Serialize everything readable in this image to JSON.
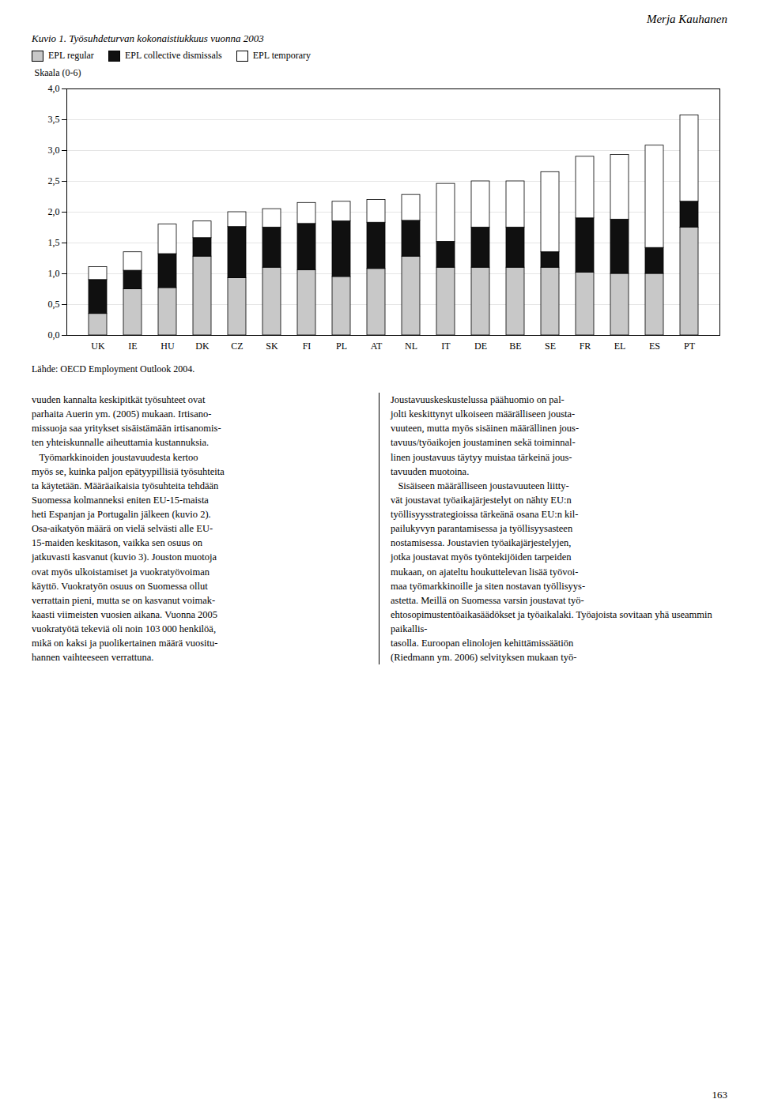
{
  "chart_data": {
    "type": "bar",
    "title": "Kuvio 1. Työsuhdeturvan kokonaistiukkuus vuonna 2003",
    "ylabel": "Skaala (0-6)",
    "annotations": [
      "Merja Kauhanen",
      "Lähde: OECD Employment Outlook 2004.",
      "vuuden kannalta keskipitkät työsuhteet ovat\nparhaita Auerin ym. (2005) mukaan. Irtisano-\nmissuoja saa yritykset sisäistämään irtisanomis-\nten yhteiskunnalle aiheuttamia kustannuksia.\n   Työmarkkinoiden joustavuudesta kertoo\nmyös se, kuinka paljon epätyypillisiä työsuhteita\nta käytetään. Määräaikaisia työsuhteita tehdään\nSuomessa kolmanneksi eniten EU-15-maista\nheti Espanjan ja Portugalin jälkeen (kuvio 2).\nOsa-aikatyön määrä on vielä selvästi alle EU-\n15-maiden keskitason, vaikka sen osuus on\njatkuvasti kasvanut (kuvio 3). Jouston muotoja\novat myös ulkoistamiset ja vuokratyövoiman\nkäyttö. Vuokratyön osuus on Suomessa ollut\nverrattain pieni, mutta se on kasvanut voimak-\nkaasti viimeisten vuosien aikana. Vuonna 2005\nvuokratyötä tekeviä oli noin 103 000 henkilöä,\nmikä on kaksi ja puolikertainen määrä vuositu-\nhannen vaihteeseen verrattuna.",
      "Joustavuuskeskustelussa päähuomio on pal-\njolti keskittynyt ulkoiseen määrälliseen jousta-\nvuuteen, mutta myös sisäinen määrällinen jous-\ntavuus/työaikojen joustaminen sekä toiminnal-\nlinen joustavuus täytyy muistaa tärkeinä jous-\ntavuuden muotoina.\n   Sisäiseen määrälliseen joustavuuteen liitty-\nvät joustavat työaikajärjestelyt on nähty EU:n\ntyöllisyysstrategioissa tärkeänä osana EU:n kil-\npailukyvyn parantamisessa ja työllisyysasteen\nnostamisessa. Joustavien työaikajärjestelyjen,\njotka joustavat myös työntekijöiden tarpeiden\nmukaan, on ajateltu houkuttelevan lisää työvoi-\nmaa työmarkkinoille ja siten nostavan työllisyys-\nastetta. Meillä on Suomessa varsin joustavat työ-\nehtosopimustentöaikasäädökset ja työaikalaki. Työajoista sovitaan yhä useammin paikallis-\ntasolla. Euroopan elinolojen kehittämissäätiön\n(Riedmann ym. 2006) selvityksen mukaan työ-",
      "163"
    ],
    "categories": [
      "UK",
      "IE",
      "HU",
      "DK",
      "CZ",
      "SK",
      "FI",
      "PL",
      "AT",
      "NL",
      "IT",
      "DE",
      "BE",
      "SE",
      "FR",
      "EL",
      "ES",
      "PT"
    ],
    "series": [
      {
        "name": "EPL regular",
        "color": "#c8c8c8",
        "values": [
          0.35,
          0.75,
          0.77,
          1.28,
          0.93,
          1.1,
          1.06,
          0.95,
          1.08,
          1.28,
          1.1,
          1.1,
          1.1,
          1.1,
          1.02,
          1.0,
          1.0,
          1.75
        ]
      },
      {
        "name": "EPL collective dismissals",
        "color": "#101010",
        "values": [
          0.55,
          0.3,
          0.55,
          0.3,
          0.83,
          0.65,
          0.75,
          0.9,
          0.75,
          0.58,
          0.42,
          0.65,
          0.65,
          0.25,
          0.88,
          0.88,
          0.42,
          0.42
        ]
      },
      {
        "name": "EPL temporary",
        "color": "#ffffff",
        "values": [
          0.21,
          0.3,
          0.48,
          0.27,
          0.24,
          0.3,
          0.34,
          0.32,
          0.37,
          0.42,
          0.94,
          0.75,
          0.75,
          1.3,
          1.0,
          1.05,
          1.66,
          1.4
        ]
      }
    ],
    "stacked": true,
    "ylim": [
      0.0,
      4.0
    ],
    "yticks": [
      {
        "value": 0.0,
        "label": "0,0"
      },
      {
        "value": 0.5,
        "label": "0,5"
      },
      {
        "value": 1.0,
        "label": "1,0"
      },
      {
        "value": 1.5,
        "label": "1,5"
      },
      {
        "value": 2.0,
        "label": "2,0"
      },
      {
        "value": 2.5,
        "label": "2,5"
      },
      {
        "value": 3.0,
        "label": "3,0"
      },
      {
        "value": 3.5,
        "label": "3,5"
      },
      {
        "value": 4.0,
        "label": "4,0"
      }
    ],
    "grid": true,
    "legend": "upper left"
  }
}
